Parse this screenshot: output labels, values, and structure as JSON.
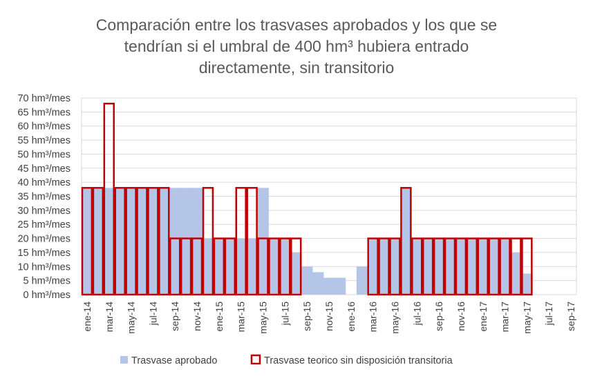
{
  "chart_data": {
    "type": "bar",
    "title": "Comparación entre los trasvases aprobados y los que se tendrían si el umbral de 400 hm³ hubiera entrado directamente, sin transitorio",
    "title_lines": [
      "Comparación entre los trasvases aprobados y los que se",
      "tendrían si el umbral de 400 hm³ hubiera entrado",
      "directamente, sin transitorio"
    ],
    "ylim": [
      0,
      70
    ],
    "ytick_step": 5,
    "ytick_unit": "hm³/mes",
    "grid": true,
    "legend_position": "bottom",
    "categories": [
      "ene-14",
      "feb-14",
      "mar-14",
      "abr-14",
      "may-14",
      "jun-14",
      "jul-14",
      "ago-14",
      "sep-14",
      "oct-14",
      "nov-14",
      "dic-14",
      "ene-15",
      "feb-15",
      "mar-15",
      "abr-15",
      "may-15",
      "jun-15",
      "jul-15",
      "ago-15",
      "sep-15",
      "oct-15",
      "nov-15",
      "dic-15",
      "ene-16",
      "feb-16",
      "mar-16",
      "abr-16",
      "may-16",
      "jun-16",
      "jul-16",
      "ago-16",
      "sep-16",
      "oct-16",
      "nov-16",
      "dic-16",
      "ene-17",
      "feb-17",
      "mar-17",
      "abr-17",
      "may-17",
      "jun-17",
      "jul-17",
      "ago-17",
      "sep-17"
    ],
    "shown_tick_labels": [
      "ene-14",
      "mar-14",
      "may-14",
      "jul-14",
      "sep-14",
      "nov-14",
      "ene-15",
      "mar-15",
      "may-15",
      "jul-15",
      "sep-15",
      "nov-15",
      "ene-16",
      "mar-16",
      "may-16",
      "jul-16",
      "sep-16",
      "nov-16",
      "ene-17",
      "mar-17",
      "may-17",
      "jul-17",
      "sep-17"
    ],
    "series": [
      {
        "name": "Trasvase aprobado",
        "color": "#b4c5e7",
        "style": "filled",
        "values": [
          38,
          38,
          38,
          38,
          38,
          38,
          38,
          38,
          38,
          38,
          38,
          20,
          20,
          20,
          20,
          20,
          38,
          20,
          20,
          15,
          10,
          8,
          6,
          6,
          0,
          10,
          20,
          20,
          20,
          38,
          20,
          20,
          20,
          20,
          20,
          20,
          20,
          20,
          20,
          15,
          7.5,
          0,
          0,
          0,
          0
        ]
      },
      {
        "name": "Trasvase teorico sin disposición transitoria",
        "color": "#c00000",
        "style": "outline",
        "values": [
          38,
          38,
          68,
          38,
          38,
          38,
          38,
          38,
          20,
          20,
          20,
          38,
          20,
          20,
          38,
          38,
          20,
          20,
          20,
          20,
          0,
          0,
          0,
          0,
          0,
          0,
          20,
          20,
          20,
          38,
          20,
          20,
          20,
          20,
          20,
          20,
          20,
          20,
          20,
          20,
          20,
          0,
          0,
          0,
          0
        ]
      }
    ]
  }
}
